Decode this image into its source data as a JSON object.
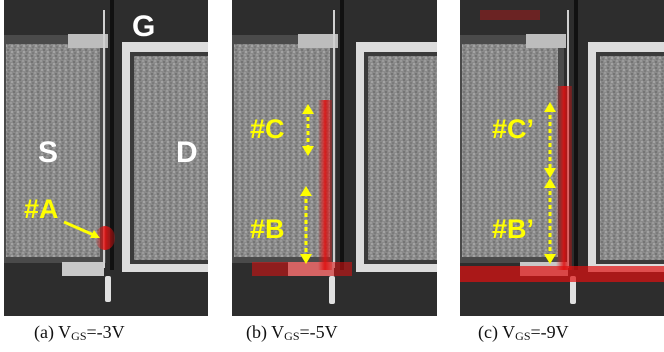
{
  "colors": {
    "label_white": "#ffffff",
    "label_yellow": "#ffff00",
    "emission_red": "#e01010"
  },
  "panels": [
    {
      "labels": {
        "gate": "G",
        "source": "S",
        "drain": "D",
        "spot": "#A"
      },
      "caption": {
        "prefix": "(a) V",
        "sub": "GS",
        "value": "=-3V"
      }
    },
    {
      "labels": {
        "spot_top": "#C",
        "spot_bottom": "#B"
      },
      "caption": {
        "prefix": "(b) V",
        "sub": "GS",
        "value": "=-5V"
      }
    },
    {
      "labels": {
        "spot_top": "#C’",
        "spot_bottom": "#B’"
      },
      "caption": {
        "prefix": "(c) V",
        "sub": "GS",
        "value": "=-9V"
      }
    }
  ]
}
